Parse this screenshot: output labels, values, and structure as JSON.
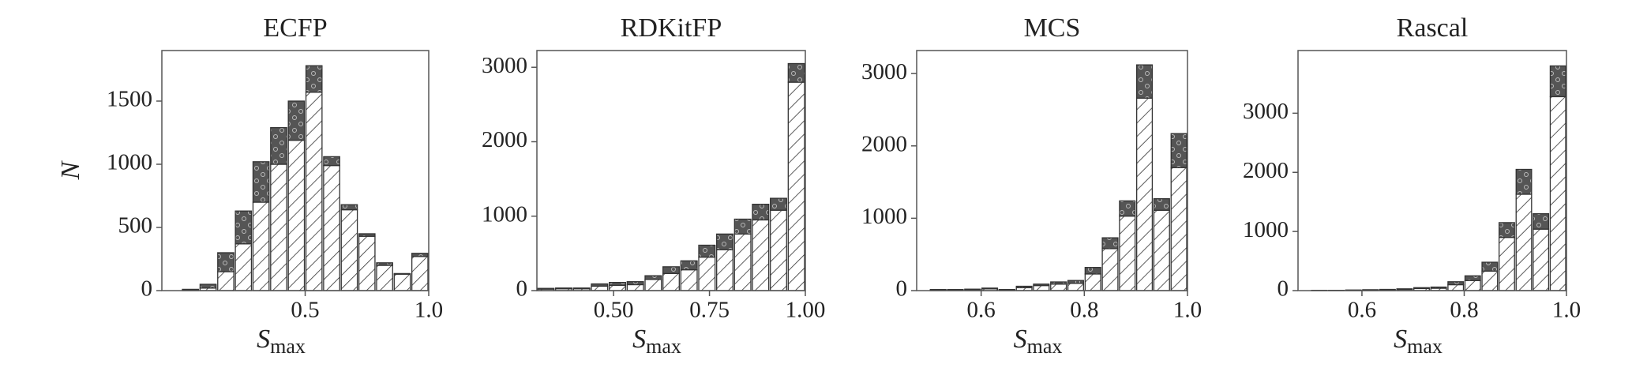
{
  "chart_data": [
    {
      "type": "histogram",
      "title": "ECFP",
      "xlabel": "S",
      "xlabel_subscript": "max",
      "ylabel": "N",
      "bins": [
        0,
        0.0714,
        0.1429,
        0.2143,
        0.2857,
        0.3571,
        0.4286,
        0.5,
        0.5714,
        0.6429,
        0.7143,
        0.7857,
        0.8571,
        0.9286,
        1.0
      ],
      "series": [
        {
          "color": "#ffffff",
          "hatch": "//",
          "values": [
            5,
            20,
            150,
            370,
            700,
            1000,
            1190,
            1570,
            990,
            640,
            430,
            200,
            130,
            270
          ]
        },
        {
          "color": "#555555",
          "hatch": "o",
          "values": [
            5,
            30,
            150,
            260,
            320,
            290,
            310,
            210,
            70,
            40,
            20,
            20,
            5,
            25
          ]
        }
      ],
      "xlim": [
        -0.08,
        1.0
      ],
      "xticks": [
        0.5,
        {
          "value": 1.0,
          "label": "1.0"
        }
      ],
      "ylim": [
        0,
        1900
      ],
      "yticks": [
        0,
        500,
        1000,
        1500
      ]
    },
    {
      "type": "histogram",
      "title": "RDKitFP",
      "xlabel": "S",
      "xlabel_subscript": "max",
      "bins": [
        0.3,
        0.3467,
        0.3933,
        0.44,
        0.4867,
        0.5333,
        0.58,
        0.6267,
        0.6733,
        0.72,
        0.7667,
        0.8133,
        0.86,
        0.9067,
        0.9533,
        1.0
      ],
      "series": [
        {
          "color": "#ffffff",
          "hatch": "//",
          "values": [
            20,
            25,
            25,
            60,
            70,
            80,
            150,
            230,
            280,
            450,
            550,
            760,
            950,
            1080,
            2800
          ]
        },
        {
          "color": "#555555",
          "hatch": "o",
          "values": [
            10,
            10,
            10,
            30,
            40,
            40,
            50,
            90,
            120,
            160,
            210,
            200,
            210,
            160,
            250
          ]
        }
      ],
      "xlim": [
        0.3,
        1.0
      ],
      "xticks": [
        {
          "value": 0.5,
          "label": "0.50"
        },
        {
          "value": 0.75,
          "label": "0.75"
        },
        {
          "value": 1.0,
          "label": "1.00"
        }
      ],
      "ylim": [
        0,
        3225
      ],
      "yticks": [
        0,
        1000,
        2000,
        3000
      ]
    },
    {
      "type": "histogram",
      "title": "MCS",
      "xlabel": "S",
      "xlabel_subscript": "max",
      "bins": [
        0.5,
        0.5333,
        0.5667,
        0.6,
        0.6333,
        0.6667,
        0.7,
        0.7333,
        0.7667,
        0.8,
        0.8333,
        0.8667,
        0.9,
        0.9333,
        0.9667,
        1.0
      ],
      "series": [
        {
          "color": "#ffffff",
          "hatch": "//",
          "values": [
            10,
            10,
            15,
            25,
            10,
            40,
            70,
            90,
            100,
            230,
            580,
            1030,
            2660,
            1110,
            1700
          ]
        },
        {
          "color": "#555555",
          "hatch": "o",
          "values": [
            5,
            5,
            5,
            10,
            5,
            20,
            20,
            30,
            40,
            90,
            150,
            210,
            460,
            160,
            470
          ]
        }
      ],
      "xlim": [
        0.475,
        1.0
      ],
      "xticks": [
        0.6,
        0.8,
        {
          "value": 1.0,
          "label": "1.0"
        }
      ],
      "ylim": [
        0,
        3318
      ],
      "yticks": [
        0,
        1000,
        2000,
        3000
      ]
    },
    {
      "type": "histogram",
      "title": "Rascal",
      "xlabel": "S",
      "xlabel_subscript": "max",
      "bins": [
        0.5,
        0.5333,
        0.5667,
        0.6,
        0.6333,
        0.6667,
        0.7,
        0.7333,
        0.7667,
        0.8,
        0.8333,
        0.8667,
        0.9,
        0.9333,
        0.9667,
        1.0
      ],
      "series": [
        {
          "color": "#ffffff",
          "hatch": "//",
          "values": [
            3,
            3,
            6,
            10,
            15,
            20,
            35,
            40,
            100,
            170,
            330,
            900,
            1630,
            1040,
            3280
          ]
        },
        {
          "color": "#555555",
          "hatch": "o",
          "values": [
            2,
            2,
            4,
            5,
            5,
            10,
            15,
            20,
            50,
            80,
            150,
            250,
            420,
            260,
            520
          ]
        }
      ],
      "xlim": [
        0.475,
        1.0
      ],
      "xticks": [
        0.6,
        0.8,
        {
          "value": 1.0,
          "label": "1.0"
        }
      ],
      "ylim": [
        0,
        4060
      ],
      "yticks": [
        0,
        1000,
        2000,
        3000
      ]
    }
  ]
}
